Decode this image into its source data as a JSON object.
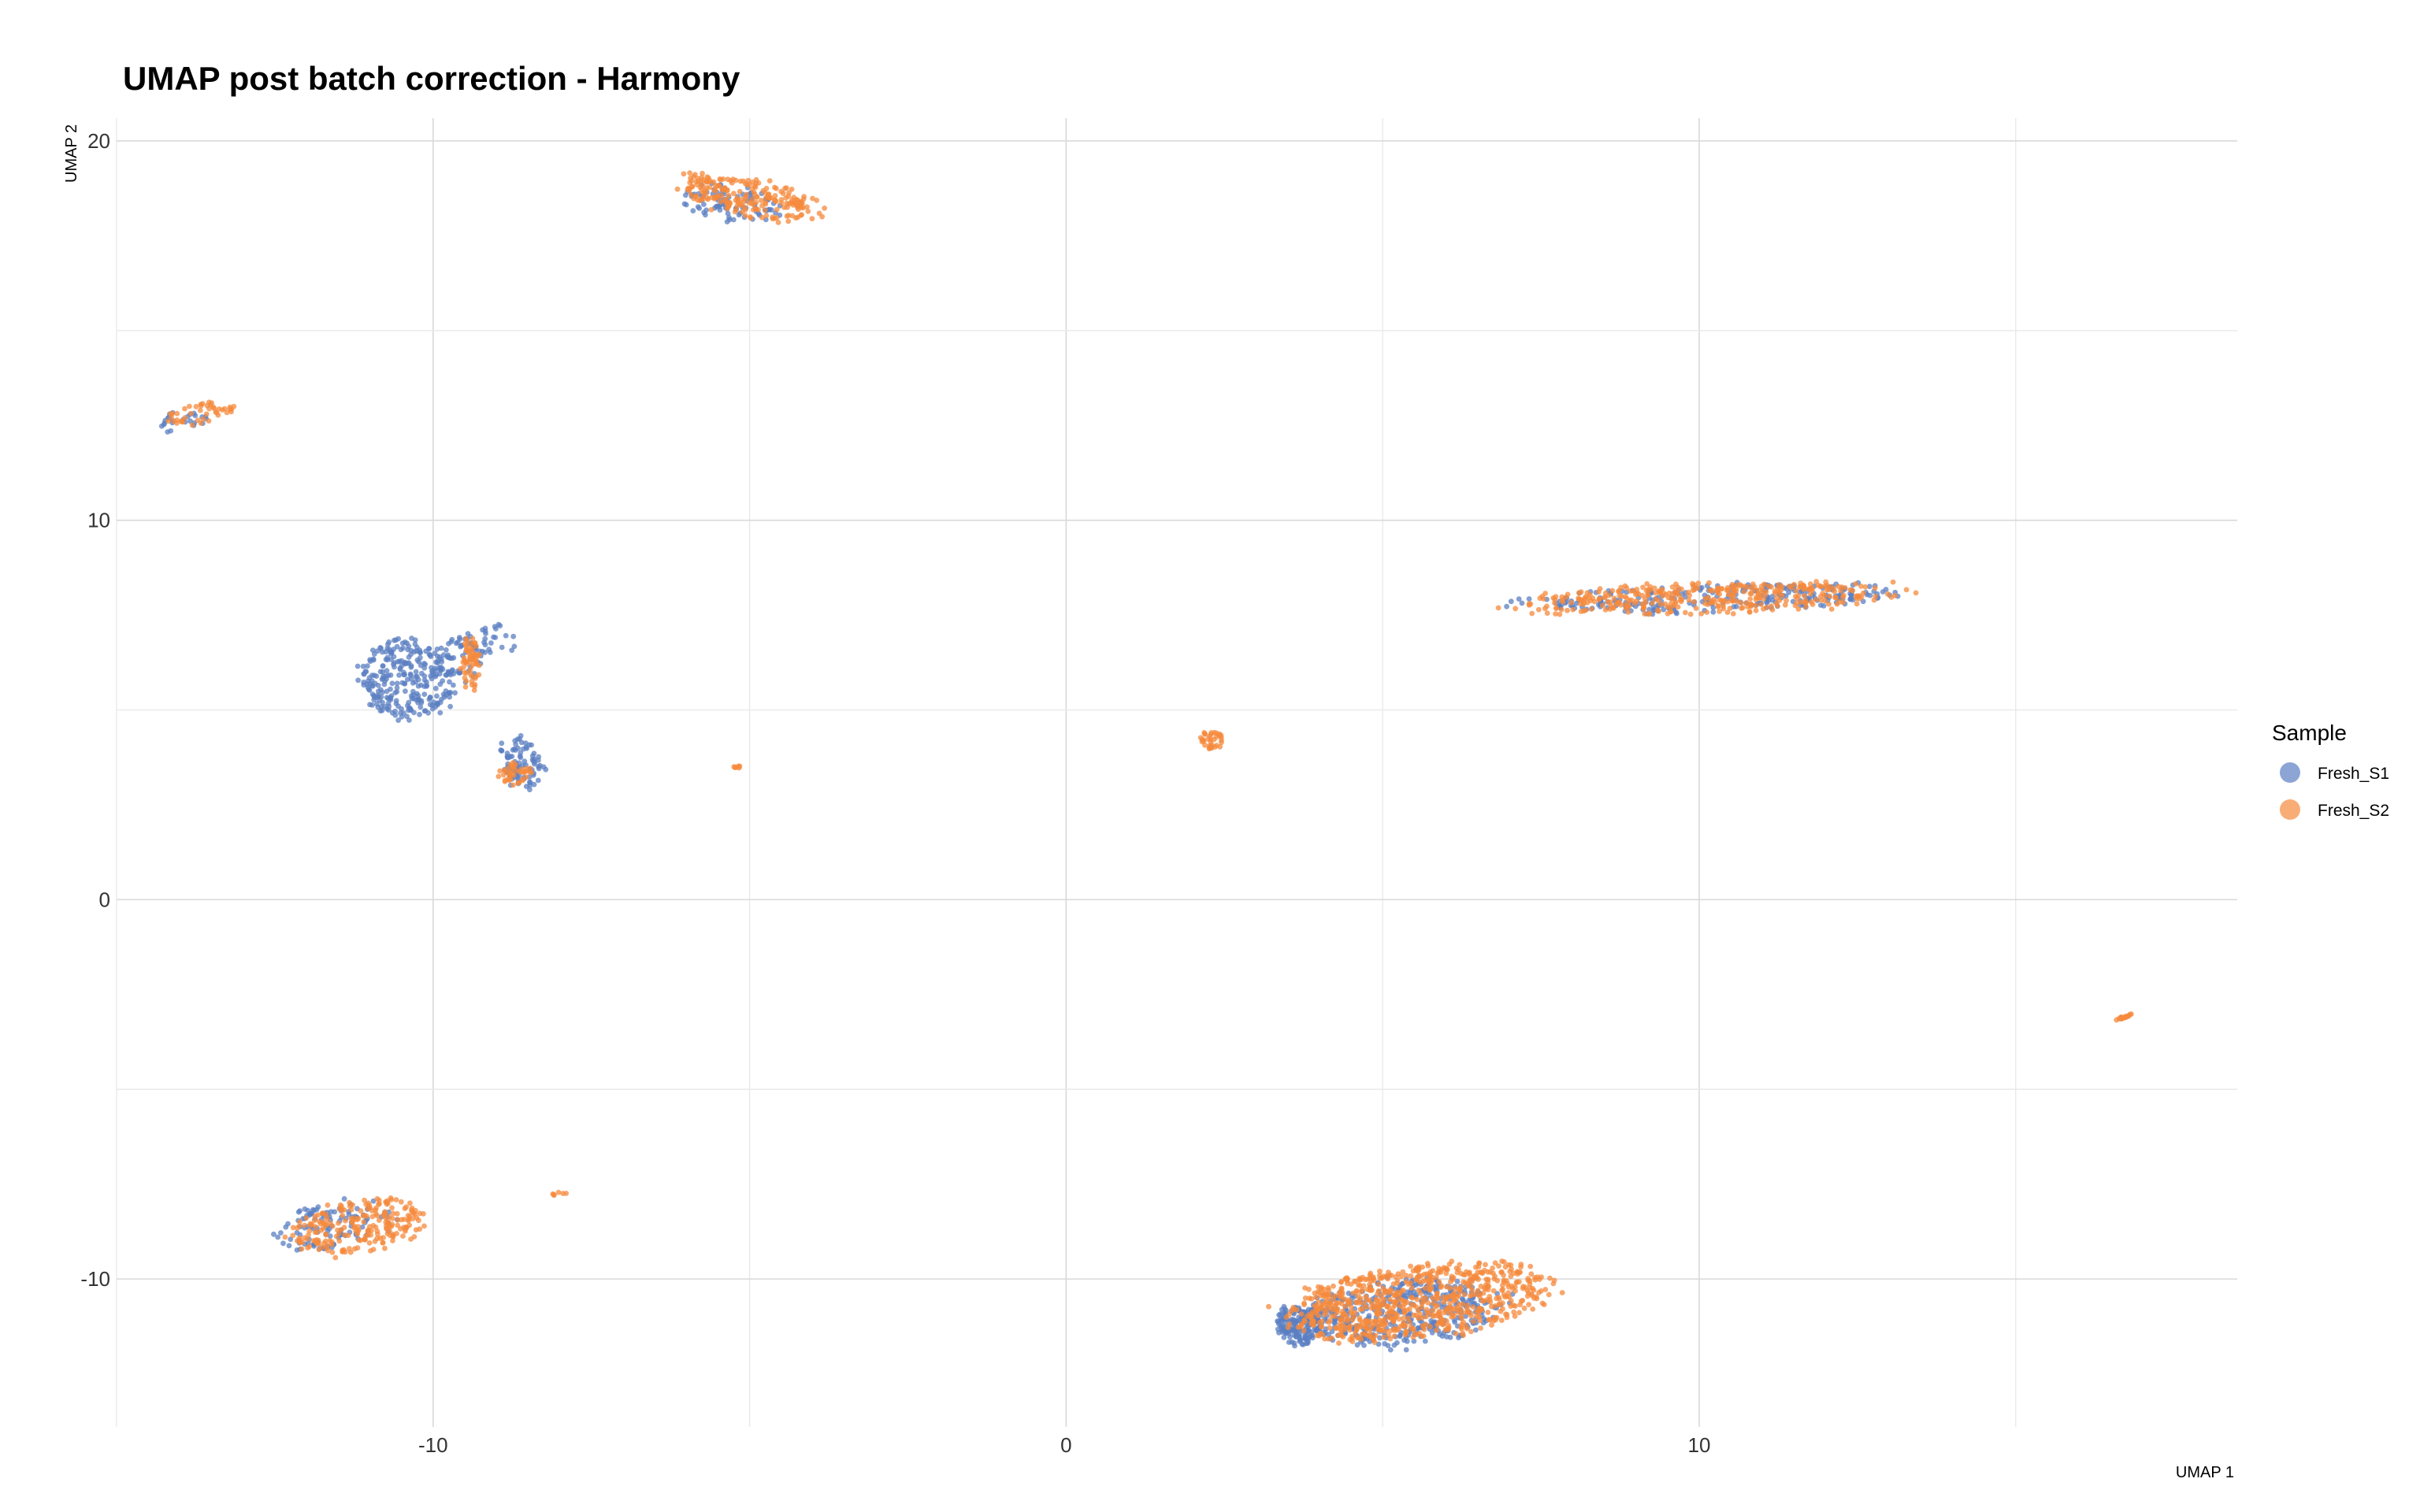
{
  "chart_data": {
    "type": "scatter",
    "title": "UMAP post batch correction - Harmony",
    "xlabel": "UMAP 1",
    "ylabel": "UMAP 2",
    "xlim": [
      -15,
      18.5
    ],
    "ylim": [
      -13.9,
      20.6
    ],
    "x_ticks": [
      -10,
      0,
      10
    ],
    "x_tick_labels": [
      "-10",
      "0",
      "10"
    ],
    "y_ticks": [
      -10,
      0,
      10,
      20
    ],
    "y_tick_labels": [
      "-10",
      "0",
      "10",
      "20"
    ],
    "grid": true,
    "legend_position": "right",
    "legend_title": "Sample",
    "series": [
      {
        "name": "Fresh_S1",
        "color": "#5b7fc2",
        "clusters": [
          {
            "cx": -5.3,
            "cy": 18.35,
            "rx": 0.9,
            "ry": 0.45,
            "rot": -20,
            "n": 90
          },
          {
            "cx": -14.0,
            "cy": 12.6,
            "rx": 0.5,
            "ry": 0.25,
            "rot": 15,
            "n": 25
          },
          {
            "cx": -10.4,
            "cy": 5.8,
            "rx": 0.75,
            "ry": 1.1,
            "rot": 5,
            "n": 280
          },
          {
            "cx": -9.4,
            "cy": 6.5,
            "rx": 0.5,
            "ry": 0.9,
            "rot": -40,
            "n": 80
          },
          {
            "cx": -8.6,
            "cy": 3.6,
            "rx": 0.35,
            "ry": 0.75,
            "rot": 10,
            "n": 90
          },
          {
            "cx": 10.2,
            "cy": 7.95,
            "rx": 3.0,
            "ry": 0.35,
            "rot": 3,
            "n": 260
          },
          {
            "cx": -11.6,
            "cy": -8.6,
            "rx": 1.0,
            "ry": 0.6,
            "rot": 20,
            "n": 110
          },
          {
            "cx": 3.7,
            "cy": -11.2,
            "rx": 0.35,
            "ry": 0.55,
            "rot": 0,
            "n": 170
          },
          {
            "cx": 5.3,
            "cy": -10.9,
            "rx": 1.6,
            "ry": 0.85,
            "rot": 10,
            "n": 420
          }
        ]
      },
      {
        "name": "Fresh_S2",
        "color": "#f58a3c",
        "clusters": [
          {
            "cx": -5.0,
            "cy": 18.5,
            "rx": 1.2,
            "ry": 0.5,
            "rot": -18,
            "n": 220
          },
          {
            "cx": -13.7,
            "cy": 12.8,
            "rx": 0.6,
            "ry": 0.3,
            "rot": 20,
            "n": 45
          },
          {
            "cx": -9.4,
            "cy": 6.2,
            "rx": 0.15,
            "ry": 0.75,
            "rot": 0,
            "n": 60
          },
          {
            "cx": -8.7,
            "cy": 3.3,
            "rx": 0.3,
            "ry": 0.3,
            "rot": 0,
            "n": 40
          },
          {
            "cx": -5.2,
            "cy": 3.5,
            "rx": 0.05,
            "ry": 0.04,
            "rot": 0,
            "n": 6
          },
          {
            "cx": 2.3,
            "cy": 4.2,
            "rx": 0.2,
            "ry": 0.25,
            "rot": 0,
            "n": 35
          },
          {
            "cx": 10.2,
            "cy": 7.95,
            "rx": 3.0,
            "ry": 0.4,
            "rot": 3,
            "n": 380
          },
          {
            "cx": -11.2,
            "cy": -8.6,
            "rx": 1.1,
            "ry": 0.7,
            "rot": 20,
            "n": 230
          },
          {
            "cx": -8.0,
            "cy": -7.75,
            "rx": 0.15,
            "ry": 0.05,
            "rot": 15,
            "n": 6
          },
          {
            "cx": 5.6,
            "cy": -10.6,
            "rx": 2.1,
            "ry": 0.95,
            "rot": 12,
            "n": 760
          },
          {
            "cx": 16.7,
            "cy": -3.1,
            "rx": 0.15,
            "ry": 0.03,
            "rot": 30,
            "n": 18
          }
        ]
      }
    ]
  }
}
